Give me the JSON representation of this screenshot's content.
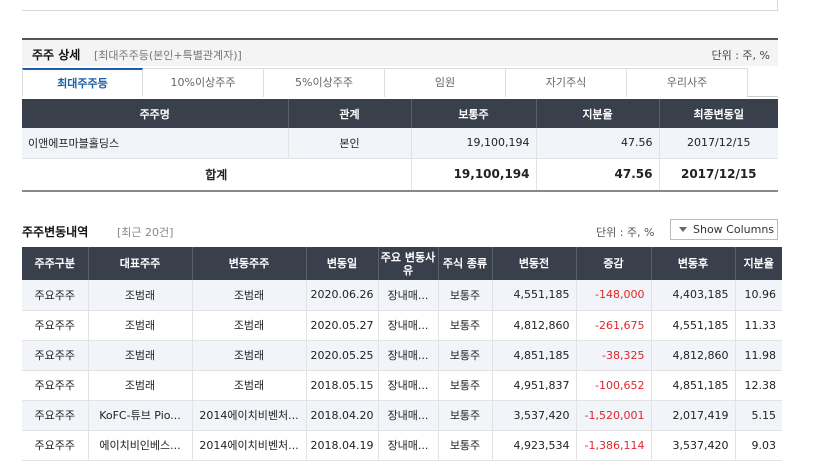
{
  "section1": {
    "title": "주주 상세",
    "subtitle": "[최대주주등(본인+특별관계자)]",
    "unit": "단위 : 주, %",
    "tabs": [
      "최대주주등",
      "10%이상주주",
      "5%이상주주",
      "임원",
      "자기주식",
      "우리사주"
    ],
    "active_tab": 0,
    "columns": [
      "주주명",
      "관계",
      "보통주",
      "지분율",
      "최종변동일"
    ],
    "rows": [
      {
        "name": "이앤에프마블홀딩스",
        "relation": "본인",
        "common": "19,100,194",
        "ratio": "47.56",
        "date": "2017/12/15"
      }
    ],
    "total": {
      "label": "합계",
      "common": "19,100,194",
      "ratio": "47.56",
      "date": "2017/12/15"
    }
  },
  "section2": {
    "title": "주주변동내역",
    "subtitle": "[최근 20건]",
    "unit": "단위 : 주, %",
    "show_columns": "Show Columns",
    "columns": [
      "주주구분",
      "대표주주",
      "변동주주",
      "변동일",
      "주요 변동사유",
      "주식 종류",
      "변동전",
      "증감",
      "변동후",
      "지분율"
    ],
    "rows": [
      {
        "type": "주요주주",
        "rep": "조범래",
        "holder": "조범래",
        "date": "2020.06.26",
        "reason": "장내매...",
        "kind": "보통주",
        "before": "4,551,185",
        "change": "-148,000",
        "after": "4,403,185",
        "ratio": "10.96"
      },
      {
        "type": "주요주주",
        "rep": "조범래",
        "holder": "조범래",
        "date": "2020.05.27",
        "reason": "장내매...",
        "kind": "보통주",
        "before": "4,812,860",
        "change": "-261,675",
        "after": "4,551,185",
        "ratio": "11.33"
      },
      {
        "type": "주요주주",
        "rep": "조범래",
        "holder": "조범래",
        "date": "2020.05.25",
        "reason": "장내매...",
        "kind": "보통주",
        "before": "4,851,185",
        "change": "-38,325",
        "after": "4,812,860",
        "ratio": "11.98"
      },
      {
        "type": "주요주주",
        "rep": "조범래",
        "holder": "조범래",
        "date": "2018.05.15",
        "reason": "장내매...",
        "kind": "보통주",
        "before": "4,951,837",
        "change": "-100,652",
        "after": "4,851,185",
        "ratio": "12.38"
      },
      {
        "type": "주요주주",
        "rep": "KoFC-튜브 Pio...",
        "holder": "2014에이치비벤처...",
        "date": "2018.04.20",
        "reason": "장내매...",
        "kind": "보통주",
        "before": "3,537,420",
        "change": "-1,520,001",
        "after": "2,017,419",
        "ratio": "5.15"
      },
      {
        "type": "주요주주",
        "rep": "에이치비인베스...",
        "holder": "2014에이치비벤처...",
        "date": "2018.04.19",
        "reason": "장내매...",
        "kind": "보통주",
        "before": "4,923,534",
        "change": "-1,386,114",
        "after": "3,537,420",
        "ratio": "9.03"
      }
    ]
  }
}
